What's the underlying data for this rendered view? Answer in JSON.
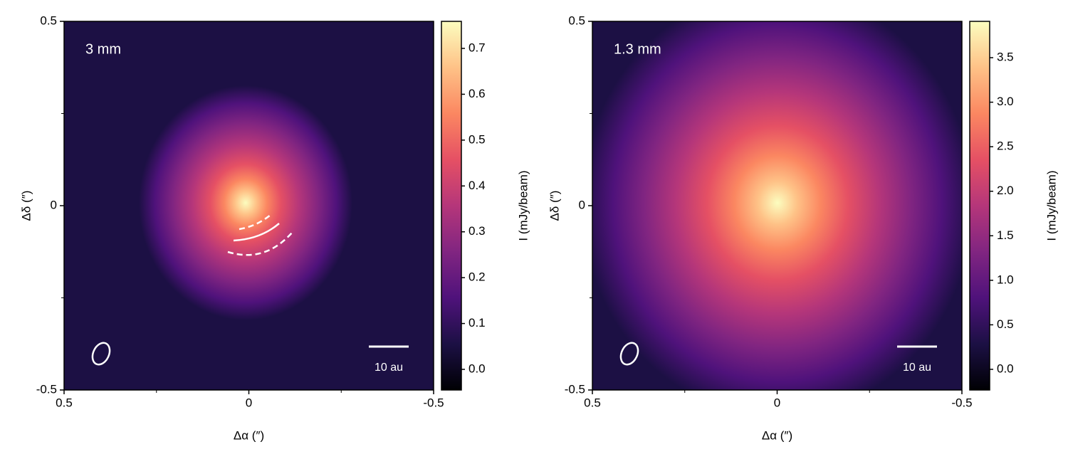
{
  "chart_data": [
    {
      "type": "image",
      "label": "3 mm",
      "xlabel": "Δα (″)",
      "ylabel": "Δδ (″)",
      "xlim": [
        0.5,
        -0.5
      ],
      "xticks": [
        0.5,
        0,
        -0.5
      ],
      "xticks_minor": [
        0.25,
        -0.25
      ],
      "ylim": [
        -0.5,
        0.5
      ],
      "yticks": [
        -0.5,
        0,
        0.5
      ],
      "yticks_minor": [
        -0.25,
        0.25
      ],
      "colorbar": {
        "label": "I (mJy/beam)",
        "lim": [
          -0.045,
          0.759
        ],
        "ticks": [
          {
            "value": 0,
            "label": "0.0"
          },
          0.1,
          0.2,
          0.3,
          0.4,
          0.5,
          0.6,
          0.7
        ]
      },
      "scalebar": "10 au",
      "colormap": [
        "#000004",
        "#1c1044",
        "#4f127b",
        "#812581",
        "#b5367a",
        "#e55064",
        "#fb8761",
        "#fec287",
        "#fcfdbf"
      ]
    },
    {
      "type": "image",
      "label": "1.3 mm",
      "xlabel": "Δα (″)",
      "ylabel": "Δδ (″)",
      "xlim": [
        0.5,
        -0.5
      ],
      "xticks": [
        0.5,
        0,
        -0.5
      ],
      "xticks_minor": [
        0.25,
        -0.25
      ],
      "ylim": [
        -0.5,
        0.5
      ],
      "yticks": [
        -0.5,
        0,
        0.5
      ],
      "yticks_minor": [
        -0.25,
        0.25
      ],
      "colorbar": {
        "label": "I (mJy/beam)",
        "lim": [
          -0.232,
          3.908
        ],
        "ticks": [
          {
            "value": 0,
            "label": "0.0"
          },
          0.5,
          {
            "value": 1,
            "label": "1.0"
          },
          1.5,
          {
            "value": 2,
            "label": "2.0"
          },
          2.5,
          {
            "value": 3,
            "label": "3.0"
          },
          3.5
        ]
      },
      "scalebar": "10 au",
      "colormap": [
        "#000004",
        "#1c1044",
        "#4f127b",
        "#812581",
        "#b5367a",
        "#e55064",
        "#fb8761",
        "#fec287",
        "#fcfdbf"
      ]
    }
  ]
}
